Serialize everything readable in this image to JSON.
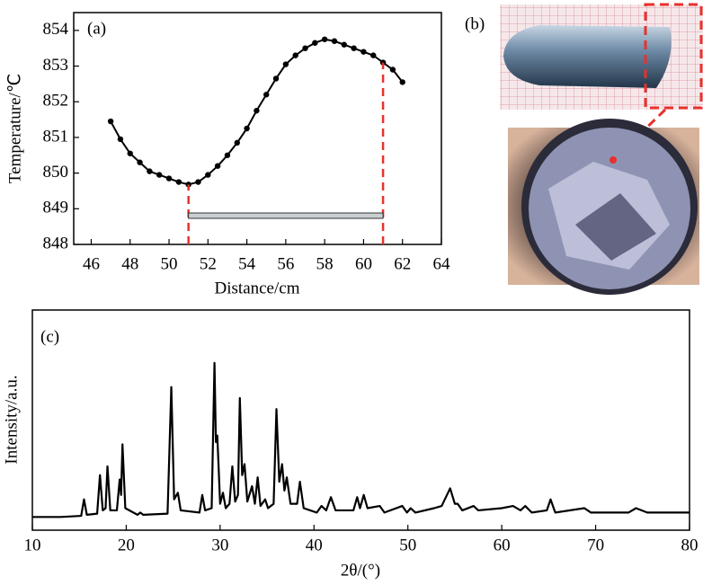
{
  "chart_data": [
    {
      "type": "line",
      "panel_label": "(a)",
      "xlabel": "Distance/cm",
      "ylabel": "Temperature/℃",
      "x": [
        47,
        47.5,
        48,
        48.5,
        49,
        49.5,
        50,
        50.5,
        51,
        51.5,
        52,
        52.5,
        53,
        53.5,
        54,
        54.5,
        55,
        55.5,
        56,
        56.5,
        57,
        57.5,
        58,
        58.5,
        59,
        59.5,
        60,
        60.5,
        61,
        61.5,
        62
      ],
      "series": [
        {
          "color": "#000000",
          "values": [
            851.45,
            850.95,
            850.55,
            850.3,
            850.05,
            849.95,
            849.85,
            849.75,
            849.68,
            849.75,
            849.95,
            850.2,
            850.5,
            850.85,
            851.25,
            851.75,
            852.2,
            852.65,
            853.05,
            853.3,
            853.5,
            853.65,
            853.75,
            853.7,
            853.6,
            853.5,
            853.4,
            853.3,
            853.1,
            852.9,
            852.55
          ]
        }
      ],
      "markers": true,
      "vlines": [
        51,
        61
      ],
      "vline_color": "#e8312b",
      "xlim": [
        45.1,
        64
      ],
      "xticks": [
        46,
        48,
        50,
        52,
        54,
        56,
        58,
        60,
        62,
        64
      ],
      "ylim": [
        848,
        854.5
      ],
      "yticks": [
        848,
        849,
        850,
        851,
        852,
        853,
        854
      ]
    },
    {
      "type": "line",
      "panel_label": "(c)",
      "xlabel": "2θ/(°)",
      "ylabel": "Intensity/a.u.",
      "x": [
        10,
        13,
        15.2,
        15.5,
        15.8,
        16.9,
        17.2,
        17.5,
        17.8,
        18.0,
        18.3,
        19.0,
        19.3,
        19.45,
        19.6,
        19.9,
        21.2,
        21.5,
        21.8,
        24.4,
        24.8,
        25.1,
        25.5,
        25.8,
        27.8,
        28.1,
        28.4,
        29.1,
        29.4,
        29.55,
        29.7,
        30.0,
        30.3,
        30.6,
        31.0,
        31.3,
        31.6,
        31.9,
        32.1,
        32.35,
        32.6,
        32.9,
        33.4,
        33.7,
        34.0,
        34.3,
        34.8,
        35.1,
        35.7,
        36.0,
        36.3,
        36.6,
        36.85,
        37.1,
        37.5,
        38.2,
        38.5,
        38.9,
        40.3,
        40.8,
        41.3,
        41.8,
        42.3,
        44.2,
        44.6,
        44.9,
        45.3,
        45.7,
        47.0,
        47.5,
        49.4,
        49.9,
        50.3,
        50.8,
        52.8,
        53.6,
        54.5,
        55.0,
        55.3,
        55.8,
        57.0,
        57.5,
        60.0,
        61.2,
        62.0,
        62.5,
        63.2,
        64.8,
        65.2,
        65.7,
        68.8,
        69.5,
        73.5,
        74.3,
        75.5,
        78,
        80
      ],
      "series": [
        {
          "color": "#000000",
          "values": [
            6,
            6,
            6.5,
            14,
            7,
            7.5,
            25,
            9,
            10,
            29,
            9,
            9,
            23,
            16,
            39,
            10,
            7,
            8,
            7,
            7.5,
            65,
            14,
            17,
            9,
            8,
            16,
            9,
            10,
            76,
            40,
            43,
            12,
            17,
            10,
            12,
            29,
            13,
            16,
            60,
            25,
            30,
            13,
            20,
            12,
            24,
            11,
            14,
            10,
            12,
            55,
            22,
            30,
            18,
            24,
            12,
            12,
            22,
            10,
            8,
            11,
            9,
            15,
            9,
            9,
            15,
            10,
            16,
            10,
            11,
            8,
            11,
            8,
            10,
            8,
            10,
            11,
            19,
            12,
            12,
            9,
            11,
            9,
            10,
            11,
            9,
            11,
            8,
            9,
            14,
            8,
            10,
            8,
            8,
            10,
            8,
            8,
            8
          ]
        }
      ],
      "markers": false,
      "xlim": [
        10,
        80
      ],
      "xticks": [
        10,
        20,
        30,
        40,
        50,
        60,
        70,
        80
      ],
      "ylim": [
        0,
        100
      ]
    }
  ],
  "panel_b": {
    "label": "(b)"
  }
}
